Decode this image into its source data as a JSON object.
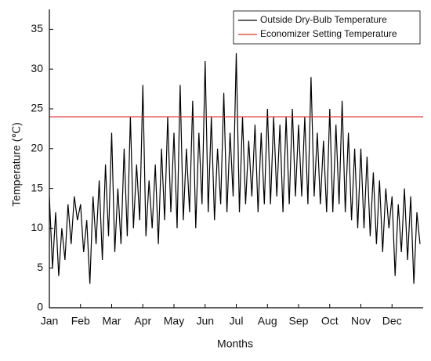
{
  "chart_data": {
    "type": "line",
    "x_label": "Months",
    "y_label": "Temperature (℃)",
    "categories": [
      "Jan",
      null,
      null,
      null,
      null,
      null,
      null,
      null,
      null,
      null,
      "Feb",
      null,
      null,
      null,
      null,
      null,
      null,
      null,
      null,
      null,
      "Mar",
      null,
      null,
      null,
      null,
      null,
      null,
      null,
      null,
      null,
      "Apr",
      null,
      null,
      null,
      null,
      null,
      null,
      null,
      null,
      null,
      "May",
      null,
      null,
      null,
      null,
      null,
      null,
      null,
      null,
      null,
      "Jun",
      null,
      null,
      null,
      null,
      null,
      null,
      null,
      null,
      null,
      "Jul",
      null,
      null,
      null,
      null,
      null,
      null,
      null,
      null,
      null,
      "Aug",
      null,
      null,
      null,
      null,
      null,
      null,
      null,
      null,
      null,
      "Sep",
      null,
      null,
      null,
      null,
      null,
      null,
      null,
      null,
      null,
      "Oct",
      null,
      null,
      null,
      null,
      null,
      null,
      null,
      null,
      null,
      "Nov",
      null,
      null,
      null,
      null,
      null,
      null,
      null,
      null,
      null,
      "Dec",
      null,
      null,
      null,
      null,
      null,
      null,
      null,
      null,
      null
    ],
    "series": [
      {
        "name": "Outside Dry-Bulb Temperature",
        "color": "#000000",
        "values": [
          14,
          5,
          12,
          4,
          10,
          6,
          13,
          8,
          14,
          11,
          13,
          7,
          11,
          3,
          14,
          8,
          16,
          6,
          18,
          9,
          22,
          7,
          15,
          8,
          20,
          9,
          24,
          10,
          18,
          11,
          28,
          9,
          16,
          10,
          18,
          8,
          20,
          11,
          24,
          12,
          22,
          10,
          28,
          11,
          20,
          12,
          26,
          10,
          22,
          13,
          31,
          12,
          24,
          11,
          20,
          13,
          27,
          12,
          22,
          14,
          32,
          12,
          24,
          13,
          21,
          14,
          23,
          12,
          22,
          13,
          25,
          13,
          24,
          14,
          23,
          12,
          24,
          13,
          25,
          14,
          23,
          14,
          24,
          13,
          29,
          14,
          22,
          13,
          21,
          12,
          25,
          12,
          23,
          13,
          26,
          12,
          22,
          11,
          20,
          10,
          20,
          10,
          19,
          9,
          17,
          8,
          16,
          7,
          15,
          10,
          14,
          4,
          13,
          7,
          15,
          6,
          14,
          3,
          12,
          8
        ]
      }
    ],
    "reference_lines": [
      {
        "name": "Economizer Setting Temperature",
        "value": 24,
        "color": "#e03030"
      }
    ],
    "ylim": [
      0,
      37.5
    ],
    "yticks": [
      0,
      5,
      10,
      15,
      20,
      25,
      30,
      35
    ],
    "legend": "top-right"
  }
}
